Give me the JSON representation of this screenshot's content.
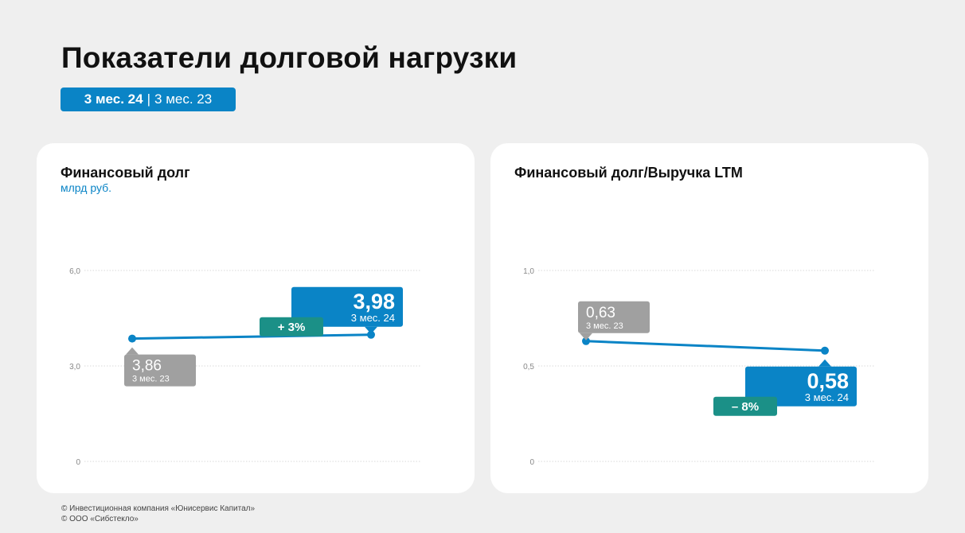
{
  "page": {
    "title": "Показатели долговой нагрузки",
    "period_active": "3 мес. 24",
    "period_separator": "|",
    "period_inactive": "3 мес. 23"
  },
  "colors": {
    "background": "#efefef",
    "card": "#ffffff",
    "accent_blue": "#0a84c6",
    "callout_gray": "#a0a0a0",
    "change_teal": "#1b9087",
    "grid": "#d9d9d9",
    "axis_text": "#888888"
  },
  "chart_data": [
    {
      "type": "line",
      "title": "Финансовый долг",
      "subtitle": "млрд руб.",
      "ylim": [
        0,
        6
      ],
      "yticks": [
        {
          "value": 0,
          "label": "0"
        },
        {
          "value": 3,
          "label": "3,0"
        },
        {
          "value": 6,
          "label": "6,0"
        }
      ],
      "grid": true,
      "x": [
        "3 мес. 23",
        "3 мес. 24"
      ],
      "series": [
        {
          "values": [
            3.86,
            3.98
          ]
        }
      ],
      "labels": [
        {
          "text": "3,86",
          "period": "3 мес. 23",
          "style": "gray",
          "placement": "below"
        },
        {
          "text": "3,98",
          "period": "3 мес. 24",
          "style": "blue",
          "placement": "above"
        }
      ],
      "change": {
        "text": "+ 3%",
        "color": "teal"
      }
    },
    {
      "type": "line",
      "title": "Финансовый долг/Выручка LTM",
      "subtitle": "",
      "ylim": [
        0,
        1
      ],
      "yticks": [
        {
          "value": 0,
          "label": "0"
        },
        {
          "value": 0.5,
          "label": "0,5"
        },
        {
          "value": 1,
          "label": "1,0"
        }
      ],
      "grid": true,
      "x": [
        "3 мес. 23",
        "3 мес. 24"
      ],
      "series": [
        {
          "values": [
            0.63,
            0.58
          ]
        }
      ],
      "labels": [
        {
          "text": "0,63",
          "period": "3 мес. 23",
          "style": "gray",
          "placement": "above"
        },
        {
          "text": "0,58",
          "period": "3 мес. 24",
          "style": "blue",
          "placement": "below"
        }
      ],
      "change": {
        "text": "– 8%",
        "color": "teal"
      }
    }
  ],
  "footer": {
    "line1": "© Инвестиционная компания «Юнисервис Капитал»",
    "line2": "© ООО «Сибстекло»"
  }
}
